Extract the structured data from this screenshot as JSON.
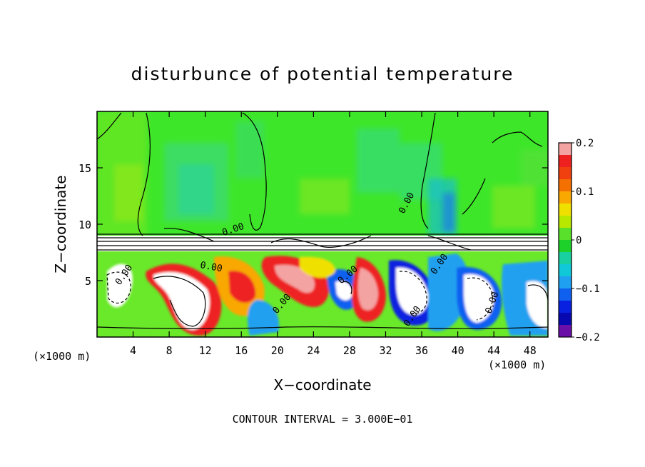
{
  "chart_data": {
    "type": "heatmap",
    "title": "disturbunce of potential temperature",
    "xlabel": "X−coordinate",
    "ylabel": "Z−coordinate",
    "x_unit_label": "(×1000 m)",
    "x_unit_label_right": "(×1000 m)",
    "xlim": [
      0,
      50
    ],
    "ylim": [
      0,
      20
    ],
    "x_ticks": [
      4,
      8,
      12,
      16,
      20,
      24,
      28,
      32,
      36,
      40,
      44,
      48
    ],
    "y_ticks": [
      5,
      10,
      15
    ],
    "colorbar": {
      "min": -0.2,
      "max": 0.2,
      "ticks": [
        "0.2",
        "0.1",
        "0",
        "−0.1",
        "−0.2"
      ],
      "tick_values": [
        0.2,
        0.1,
        0,
        -0.1,
        -0.2
      ],
      "colors": [
        "#f4a3a3",
        "#ee2020",
        "#f04010",
        "#f47000",
        "#f8a800",
        "#f0e000",
        "#b8e800",
        "#58e02a",
        "#1ed02a",
        "#18d0a0",
        "#10c8d8",
        "#20a0f0",
        "#1060f0",
        "#0820e0",
        "#0808b0",
        "#6a10a8"
      ]
    },
    "contour_labels": [
      "0.00",
      "0.00",
      "0.00",
      "0.00",
      "0.00",
      "0.00",
      "0.00",
      "0.00",
      "0.00",
      "0.00"
    ],
    "contour_interval_text": "CONTOUR INTERVAL = 3.000E−01"
  }
}
